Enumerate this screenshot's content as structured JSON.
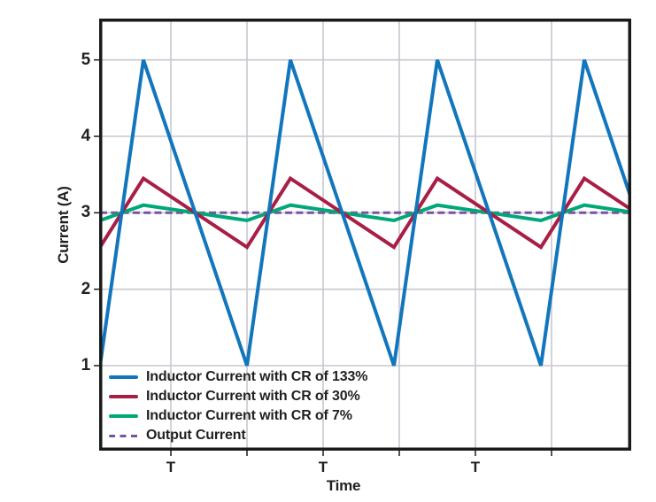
{
  "chart_data": {
    "type": "line",
    "title": "",
    "xlabel": "Time",
    "ylabel": "Current (A)",
    "y_ticks": [
      5,
      4,
      3,
      2,
      1
    ],
    "y_tick_labels": [
      "5",
      "4",
      "3",
      "2",
      "1"
    ],
    "x_tick_labels": [
      "T",
      "T",
      "T"
    ],
    "ylim": [
      -0.1,
      5.53
    ],
    "x_periods_visible": 3.6,
    "grid": true,
    "legend_position": "inside-bottom-left",
    "waveform": {
      "shape": "triangle",
      "duty_cycle": 0.3,
      "period_label": "T",
      "output_current_A": 3.0
    },
    "series": [
      {
        "name": "Inductor Current with CR of 133%",
        "color": "#1276BD",
        "style": "solid",
        "shape": "triangle",
        "min": 1.0,
        "max": 5.0,
        "mean": 3.0,
        "ripple_pkpk_A": 4.0
      },
      {
        "name": "Inductor Current with CR of 30%",
        "color": "#A81E45",
        "style": "solid",
        "shape": "triangle",
        "min": 2.55,
        "max": 3.45,
        "mean": 3.0,
        "ripple_pkpk_A": 0.9
      },
      {
        "name": "Inductor Current with CR of 7%",
        "color": "#00A878",
        "style": "solid",
        "shape": "triangle",
        "min": 2.9,
        "max": 3.1,
        "mean": 3.0,
        "ripple_pkpk_A": 0.2
      },
      {
        "name": "Output Current",
        "color": "#7B52A3",
        "style": "dashed",
        "shape": "constant",
        "value": 3.0
      }
    ],
    "colors": {
      "grid": "#C7C7CF",
      "frame": "#1A1A1A",
      "text": "#231F20",
      "background": "#FFFFFF"
    }
  }
}
